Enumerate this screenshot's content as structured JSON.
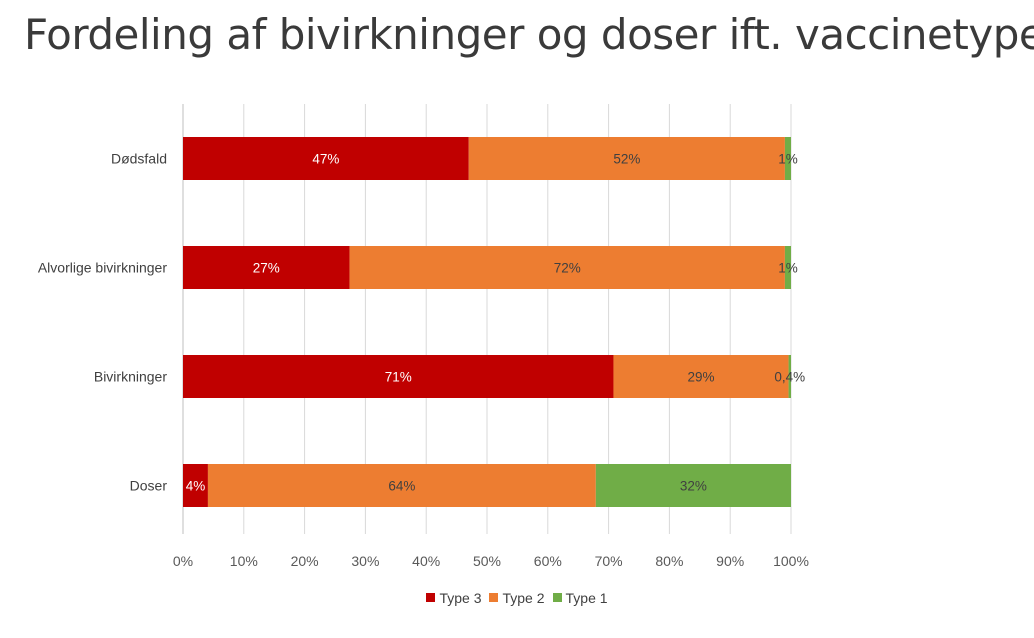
{
  "title": "Fordeling af bivirkninger og doser ift. vaccinetype",
  "chart_data": {
    "type": "bar",
    "orientation": "horizontal",
    "stacked": "percent",
    "categories": [
      "Dødsfald",
      "Alvorlige bivirkninger",
      "Bivirkninger",
      "Doser"
    ],
    "series": [
      {
        "name": "Type 3",
        "color": "#C00000",
        "values": [
          47,
          27.4,
          70.8,
          4.1
        ],
        "labels": [
          "47%",
          "27%",
          "71%",
          "4%"
        ],
        "label_color": "#ffffff"
      },
      {
        "name": "Type 2",
        "color": "#ED7D31",
        "values": [
          52,
          71.6,
          28.8,
          63.8
        ],
        "labels": [
          "52%",
          "72%",
          "29%",
          "64%"
        ],
        "label_color": "#404040"
      },
      {
        "name": "Type 1",
        "color": "#70AD47",
        "values": [
          1,
          1,
          0.4,
          32.1
        ],
        "labels": [
          "1%",
          "1%",
          "0,4%",
          "32%"
        ],
        "label_color": "#404040"
      }
    ],
    "x_ticks": [
      "0%",
      "10%",
      "20%",
      "30%",
      "40%",
      "50%",
      "60%",
      "70%",
      "80%",
      "90%",
      "100%"
    ],
    "xlim": [
      0,
      100
    ],
    "grid": true,
    "legend_position": "bottom"
  }
}
